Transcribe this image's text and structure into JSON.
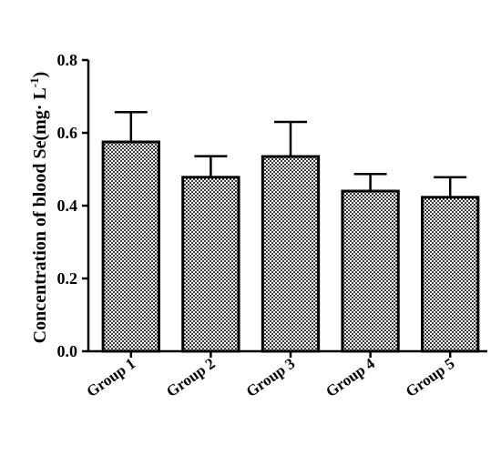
{
  "chart_data": {
    "type": "bar",
    "title": "",
    "xlabel": "",
    "ylabel": "Concentration of blood Se(mg· L",
    "ylabel_superscript": "-1",
    "ylabel_suffix": ")",
    "categories": [
      "Group 1",
      "Group 2",
      "Group 3",
      "Group 4",
      "Group 5"
    ],
    "values": [
      0.575,
      0.478,
      0.535,
      0.44,
      0.423
    ],
    "error_upper": [
      0.082,
      0.058,
      0.095,
      0.047,
      0.055
    ],
    "ylim": [
      0,
      0.8
    ],
    "yticks": [
      0.0,
      0.2,
      0.4,
      0.6,
      0.8
    ],
    "ytick_labels": [
      "0.0",
      "0.2",
      "0.4",
      "0.6",
      "0.8"
    ],
    "grid": false,
    "legend": "none",
    "bar_fill": "checkered gray pattern",
    "colors": {
      "bar_outline": "#000000",
      "pattern_dark": "#3a3a3a",
      "pattern_light": "#ffffff",
      "axis": "#000000"
    }
  }
}
